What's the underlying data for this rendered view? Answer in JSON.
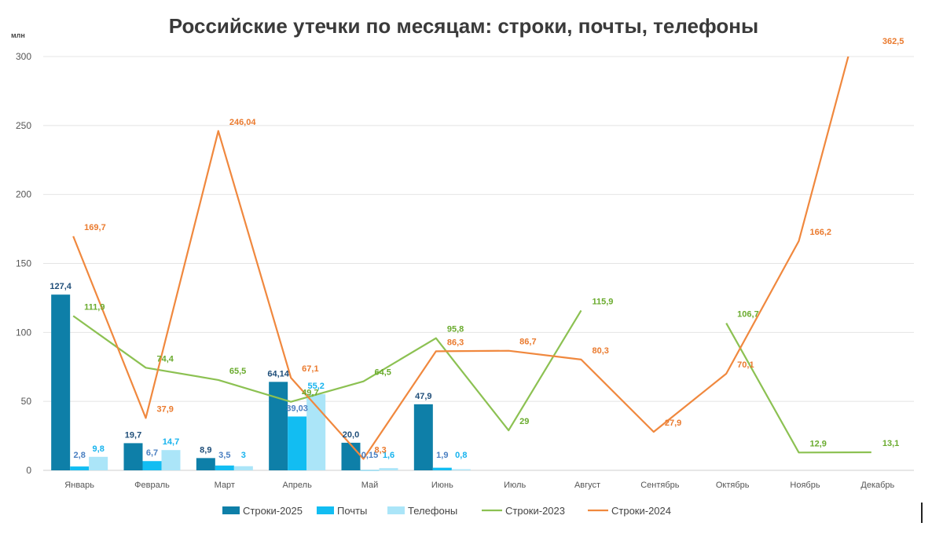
{
  "chart_data": {
    "type": "bar",
    "title": "Российские утечки по месяцам: строки, почты, телефоны",
    "y_unit": "млн",
    "ylim": [
      0,
      300
    ],
    "yticks": [
      "0",
      "50",
      "100",
      "150",
      "200",
      "250",
      "300"
    ],
    "grid": true,
    "legend_position": "bottom",
    "categories": [
      "Январь",
      "Февраль",
      "Март",
      "Апрель",
      "Май",
      "Июнь",
      "Июль",
      "Август",
      "Сентябрь",
      "Октябрь",
      "Ноябрь",
      "Декабрь"
    ],
    "bar_series": [
      {
        "name": "Строки-2025",
        "color": "#0e7fa8",
        "label_color": "#1f4e79",
        "values": [
          127.4,
          19.7,
          8.9,
          64.14,
          20.0,
          47.9,
          null,
          null,
          null,
          null,
          null,
          null
        ],
        "labels": [
          "127,4",
          "19,7",
          "8,9",
          "64,14",
          "20,0",
          "47,9",
          "",
          "",
          "",
          "",
          "",
          ""
        ]
      },
      {
        "name": "Почты",
        "color": "#12bdf2",
        "label_color": "#4a7fc1",
        "values": [
          2.8,
          6.7,
          3.5,
          39.03,
          0.15,
          1.9,
          null,
          null,
          null,
          null,
          null,
          null
        ],
        "labels": [
          "2,8",
          "6,7",
          "3,5",
          "39,03",
          "0,15",
          "1,9",
          "",
          "",
          "",
          "",
          "",
          ""
        ]
      },
      {
        "name": "Телефоны",
        "color": "#abe5f8",
        "label_color": "#16b3ee",
        "values": [
          9.8,
          14.7,
          3,
          55.2,
          1.6,
          0.8,
          null,
          null,
          null,
          null,
          null,
          null
        ],
        "labels": [
          "9,8",
          "14,7",
          "3",
          "55,2",
          "1,6",
          "0,8",
          "",
          "",
          "",
          "",
          "",
          ""
        ]
      }
    ],
    "line_series": [
      {
        "name": "Строки-2023",
        "color": "#8cc152",
        "label_color": "#6aab2e",
        "values": [
          111.9,
          74.4,
          65.5,
          49.7,
          64.5,
          95.8,
          29,
          115.9,
          null,
          106.7,
          12.9,
          13.1
        ],
        "labels": [
          "111,9",
          "74,4",
          "65,5",
          "49,7",
          "64,5",
          "95,8",
          "29",
          "115,9",
          "",
          "106,7",
          "12,9",
          "13,1"
        ]
      },
      {
        "name": "Строки-2024",
        "color": "#f0883e",
        "label_color": "#ea7a2e",
        "values": [
          169.7,
          37.9,
          246.04,
          67.1,
          8.3,
          86.3,
          86.7,
          80.3,
          27.9,
          70.1,
          166.2,
          362.5
        ],
        "labels": [
          "169,7",
          "37,9",
          "246,04",
          "67,1",
          "8,3",
          "86,3",
          "86,7",
          "80,3",
          "27,9",
          "70,1",
          "166,2",
          "362,5"
        ]
      }
    ]
  }
}
